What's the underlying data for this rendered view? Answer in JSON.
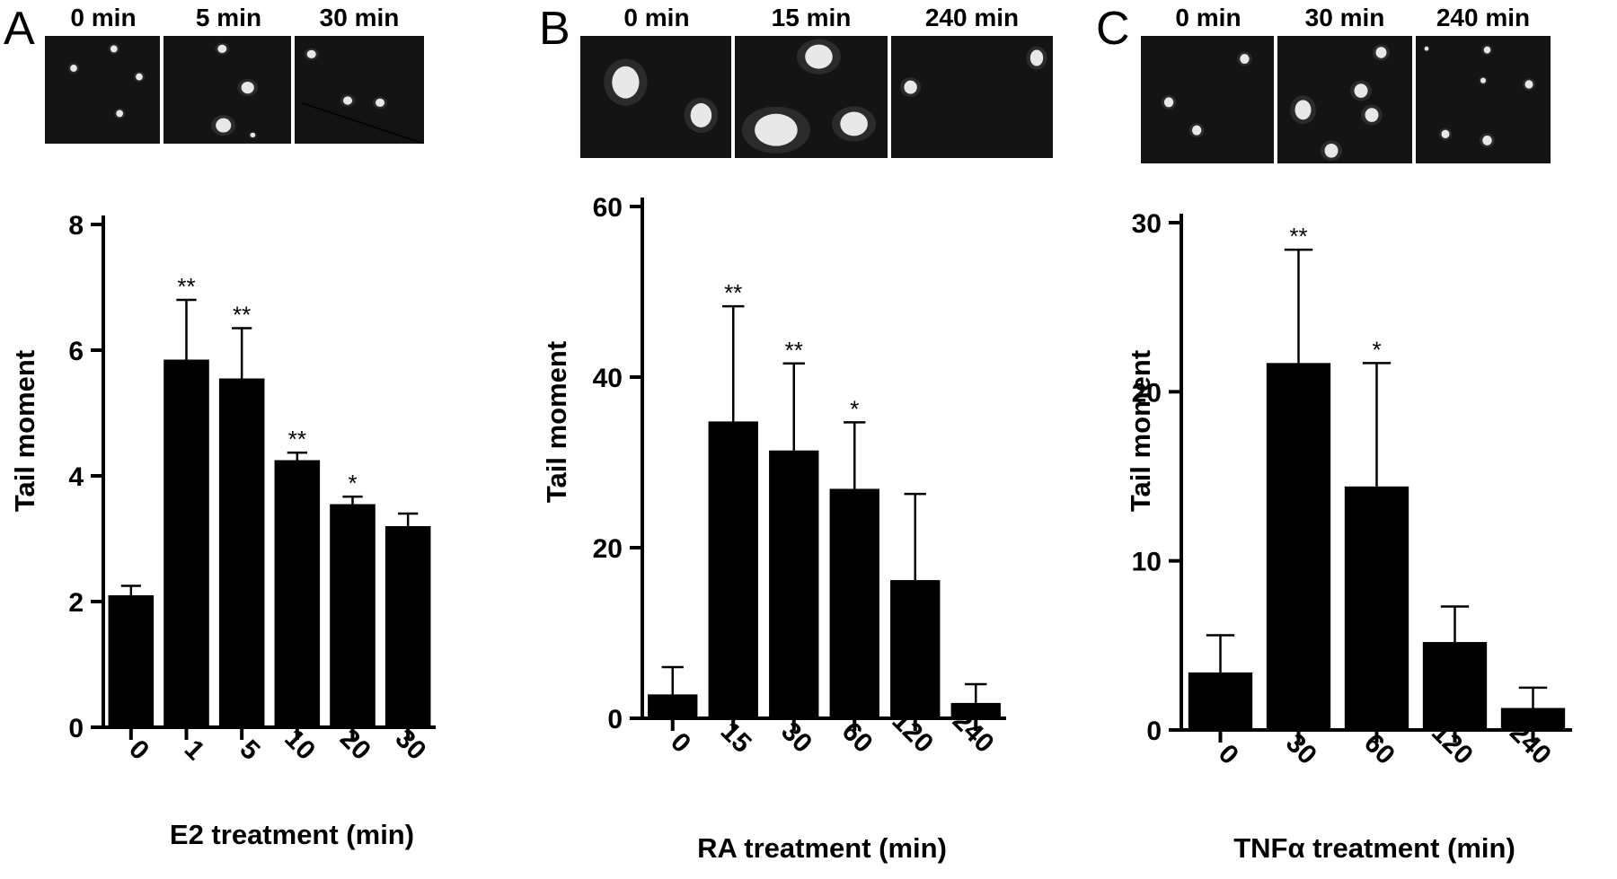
{
  "panels": [
    {
      "letter": "A",
      "micrographs": [
        {
          "label": "0 min",
          "nuclei": [
            [
              0.25,
              0.3,
              0.03,
              0.03
            ],
            [
              0.6,
              0.12,
              0.03,
              0.03
            ],
            [
              0.82,
              0.38,
              0.03,
              0.03
            ],
            [
              0.65,
              0.72,
              0.03,
              0.03
            ]
          ],
          "crack": false
        },
        {
          "label": "5 min",
          "nuclei": [
            [
              0.46,
              0.12,
              0.035,
              0.035
            ],
            [
              0.66,
              0.48,
              0.05,
              0.05
            ],
            [
              0.47,
              0.83,
              0.06,
              0.06
            ],
            [
              0.7,
              0.92,
              0.02,
              0.02
            ]
          ],
          "crack": false
        },
        {
          "label": "30 min",
          "nuclei": [
            [
              0.13,
              0.17,
              0.035,
              0.035
            ],
            [
              0.41,
              0.6,
              0.035,
              0.035
            ],
            [
              0.66,
              0.62,
              0.035,
              0.035
            ]
          ],
          "crack": true
        }
      ],
      "chart_data": {
        "type": "bar",
        "categories": [
          "0",
          "1",
          "5",
          "10",
          "20",
          "30"
        ],
        "values": [
          2.1,
          5.85,
          5.55,
          4.25,
          3.55,
          3.2
        ],
        "errors": [
          0.15,
          0.95,
          0.8,
          0.12,
          0.12,
          0.2
        ],
        "significance": [
          "",
          "**",
          "**",
          "**",
          "*",
          ""
        ],
        "ylim": [
          0,
          8
        ],
        "yticks": [
          0,
          2,
          4,
          6,
          8
        ],
        "xlabel": "E2 treatment (min)",
        "ylabel": "Tail moment"
      }
    },
    {
      "letter": "B",
      "micrographs": [
        {
          "label": "0 min",
          "nuclei": [
            [
              0.3,
              0.38,
              0.09,
              0.12
            ],
            [
              0.8,
              0.65,
              0.07,
              0.09
            ]
          ],
          "crack": false
        },
        {
          "label": "15 min",
          "nuclei": [
            [
              0.55,
              0.17,
              0.09,
              0.09
            ],
            [
              0.27,
              0.77,
              0.14,
              0.12
            ],
            [
              0.78,
              0.72,
              0.09,
              0.09
            ]
          ],
          "crack": false
        },
        {
          "label": "240 min",
          "nuclei": [
            [
              0.9,
              0.18,
              0.04,
              0.06
            ],
            [
              0.12,
              0.42,
              0.04,
              0.05
            ]
          ],
          "crack": false
        }
      ],
      "chart_data": {
        "type": "bar",
        "categories": [
          "0",
          "15",
          "30",
          "60",
          "120",
          "240"
        ],
        "values": [
          2.8,
          34.8,
          31.4,
          26.9,
          16.2,
          1.8
        ],
        "errors": [
          3.2,
          13.5,
          10.2,
          7.8,
          10.1,
          2.2
        ],
        "significance": [
          "",
          "**",
          "**",
          "*",
          "",
          ""
        ],
        "ylim": [
          0,
          60
        ],
        "yticks": [
          0,
          20,
          40,
          60
        ],
        "xlabel": "RA treatment (min)",
        "ylabel": "Tail moment"
      }
    },
    {
      "letter": "C",
      "micrographs": [
        {
          "label": "0 min",
          "nuclei": [
            [
              0.78,
              0.18,
              0.035,
              0.035
            ],
            [
              0.21,
              0.52,
              0.035,
              0.035
            ],
            [
              0.42,
              0.74,
              0.035,
              0.035
            ]
          ],
          "crack": false
        },
        {
          "label": "30 min",
          "nuclei": [
            [
              0.77,
              0.13,
              0.04,
              0.04
            ],
            [
              0.19,
              0.58,
              0.06,
              0.07
            ],
            [
              0.62,
              0.43,
              0.05,
              0.05
            ],
            [
              0.7,
              0.62,
              0.05,
              0.05
            ],
            [
              0.4,
              0.9,
              0.05,
              0.05
            ]
          ],
          "crack": false
        },
        {
          "label": "240 min",
          "nuclei": [
            [
              0.08,
              0.1,
              0.015,
              0.015
            ],
            [
              0.53,
              0.11,
              0.025,
              0.025
            ],
            [
              0.5,
              0.35,
              0.02,
              0.02
            ],
            [
              0.84,
              0.38,
              0.03,
              0.03
            ],
            [
              0.22,
              0.77,
              0.03,
              0.03
            ],
            [
              0.53,
              0.82,
              0.035,
              0.035
            ]
          ],
          "crack": false
        }
      ],
      "chart_data": {
        "type": "bar",
        "categories": [
          "0",
          "30",
          "60",
          "120",
          "240"
        ],
        "values": [
          3.4,
          21.7,
          14.4,
          5.2,
          1.3
        ],
        "errors": [
          2.2,
          6.7,
          7.3,
          2.1,
          1.2
        ],
        "significance": [
          "",
          "**",
          "*",
          "",
          ""
        ],
        "ylim": [
          0,
          30
        ],
        "yticks": [
          0,
          10,
          20,
          30
        ],
        "xlabel": "TNFα treatment (min)",
        "ylabel": "Tail moment"
      }
    }
  ]
}
